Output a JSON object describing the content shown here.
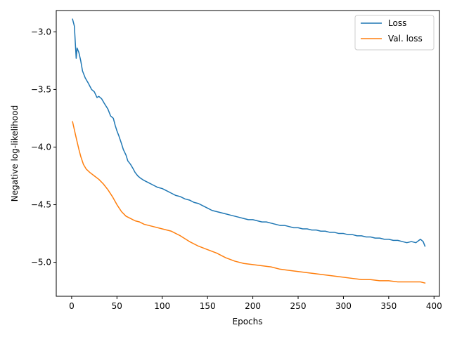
{
  "chart_data": {
    "type": "line",
    "title": "",
    "xlabel": "Epochs",
    "ylabel": "Negative log-likelihood",
    "xlim": [
      -17,
      406
    ],
    "ylim": [
      -5.295,
      -2.815
    ],
    "xticks": [
      0,
      50,
      100,
      150,
      200,
      250,
      300,
      350,
      400
    ],
    "yticks": [
      -3.0,
      -3.5,
      -4.0,
      -4.5,
      -5.0
    ],
    "ytick_labels": [
      "−3.0",
      "−3.5",
      "−4.0",
      "−4.5",
      "−5.0"
    ],
    "grid": false,
    "legend": {
      "position": "top-right"
    },
    "series": [
      {
        "name": "Loss",
        "color": "#1f77b4",
        "x": [
          1,
          3,
          5,
          6,
          8,
          10,
          12,
          15,
          18,
          20,
          22,
          25,
          28,
          30,
          33,
          36,
          40,
          43,
          46,
          48,
          50,
          52,
          55,
          57,
          60,
          62,
          65,
          68,
          70,
          73,
          76,
          80,
          85,
          90,
          95,
          100,
          105,
          110,
          115,
          120,
          125,
          130,
          135,
          140,
          145,
          150,
          155,
          160,
          165,
          170,
          175,
          180,
          185,
          190,
          195,
          200,
          205,
          210,
          215,
          220,
          225,
          230,
          235,
          240,
          245,
          250,
          255,
          260,
          265,
          270,
          275,
          280,
          285,
          290,
          295,
          300,
          305,
          310,
          315,
          320,
          325,
          330,
          335,
          340,
          345,
          350,
          355,
          360,
          365,
          370,
          375,
          380,
          385,
          388,
          390
        ],
        "y": [
          -2.89,
          -2.95,
          -3.23,
          -3.14,
          -3.18,
          -3.25,
          -3.34,
          -3.4,
          -3.44,
          -3.47,
          -3.5,
          -3.52,
          -3.57,
          -3.56,
          -3.58,
          -3.62,
          -3.67,
          -3.73,
          -3.75,
          -3.81,
          -3.86,
          -3.9,
          -3.97,
          -4.02,
          -4.07,
          -4.12,
          -4.15,
          -4.19,
          -4.22,
          -4.25,
          -4.27,
          -4.29,
          -4.31,
          -4.33,
          -4.35,
          -4.36,
          -4.38,
          -4.4,
          -4.42,
          -4.43,
          -4.45,
          -4.46,
          -4.48,
          -4.49,
          -4.51,
          -4.53,
          -4.55,
          -4.56,
          -4.57,
          -4.58,
          -4.59,
          -4.6,
          -4.61,
          -4.62,
          -4.63,
          -4.63,
          -4.64,
          -4.65,
          -4.65,
          -4.66,
          -4.67,
          -4.68,
          -4.68,
          -4.69,
          -4.7,
          -4.7,
          -4.71,
          -4.71,
          -4.72,
          -4.72,
          -4.73,
          -4.73,
          -4.74,
          -4.74,
          -4.75,
          -4.75,
          -4.76,
          -4.76,
          -4.77,
          -4.77,
          -4.78,
          -4.78,
          -4.79,
          -4.79,
          -4.8,
          -4.8,
          -4.81,
          -4.81,
          -4.82,
          -4.83,
          -4.82,
          -4.83,
          -4.8,
          -4.82,
          -4.86
        ]
      },
      {
        "name": "Val. loss",
        "color": "#ff7f0e",
        "x": [
          1,
          3,
          5,
          8,
          10,
          13,
          16,
          20,
          25,
          30,
          35,
          40,
          45,
          50,
          55,
          60,
          65,
          70,
          75,
          80,
          90,
          100,
          110,
          120,
          130,
          140,
          150,
          160,
          170,
          180,
          190,
          200,
          210,
          220,
          230,
          240,
          250,
          260,
          270,
          280,
          290,
          300,
          310,
          320,
          330,
          340,
          350,
          360,
          370,
          380,
          385,
          390
        ],
        "y": [
          -3.78,
          -3.85,
          -3.92,
          -4.02,
          -4.08,
          -4.15,
          -4.19,
          -4.22,
          -4.25,
          -4.28,
          -4.32,
          -4.37,
          -4.43,
          -4.5,
          -4.56,
          -4.6,
          -4.62,
          -4.64,
          -4.65,
          -4.67,
          -4.69,
          -4.71,
          -4.73,
          -4.77,
          -4.82,
          -4.86,
          -4.89,
          -4.92,
          -4.96,
          -4.99,
          -5.01,
          -5.02,
          -5.03,
          -5.04,
          -5.06,
          -5.07,
          -5.08,
          -5.09,
          -5.1,
          -5.11,
          -5.12,
          -5.13,
          -5.14,
          -5.15,
          -5.15,
          -5.16,
          -5.16,
          -5.17,
          -5.17,
          -5.17,
          -5.17,
          -5.18
        ]
      }
    ]
  }
}
